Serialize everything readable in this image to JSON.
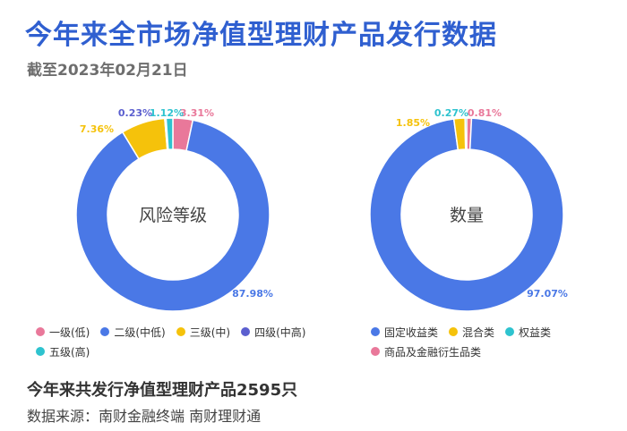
{
  "header": {
    "title": "今年来全市场净值型理财产品发行数据",
    "subtitle": "截至2023年02月21日"
  },
  "chart_data": [
    {
      "type": "pie",
      "center_label": "风险等级",
      "slices": [
        {
          "name": "一级(低)",
          "value": 3.31,
          "label": "3.31%",
          "color": "#e9789a"
        },
        {
          "name": "二级(中低)",
          "value": 87.98,
          "label": "87.98%",
          "color": "#4a78e6"
        },
        {
          "name": "三级(中)",
          "value": 7.36,
          "label": "7.36%",
          "color": "#f5c20b"
        },
        {
          "name": "四级(中高)",
          "value": 0.23,
          "label": "0.23%",
          "color": "#5b5fcf"
        },
        {
          "name": "五级(高)",
          "value": 1.12,
          "label": "1.12%",
          "color": "#2ec3cf"
        }
      ],
      "legend_rows": [
        [
          0,
          1,
          2,
          3
        ],
        [
          4
        ]
      ]
    },
    {
      "type": "pie",
      "center_label": "数量",
      "slices": [
        {
          "name": "商品及金融衍生品类",
          "value": 0.81,
          "label": "0.81%",
          "color": "#e9789a"
        },
        {
          "name": "固定收益类",
          "value": 97.07,
          "label": "97.07%",
          "color": "#4a78e6"
        },
        {
          "name": "混合类",
          "value": 1.85,
          "label": "1.85%",
          "color": "#f5c20b"
        },
        {
          "name": "权益类",
          "value": 0.27,
          "label": "0.27%",
          "color": "#2ec3cf"
        }
      ],
      "legend_rows": [
        [
          1,
          2,
          3
        ],
        [
          0
        ]
      ]
    }
  ],
  "footer": {
    "total": "今年来共发行净值型理财产品2595只",
    "source": "数据来源：南财金融终端 南财理财通"
  }
}
